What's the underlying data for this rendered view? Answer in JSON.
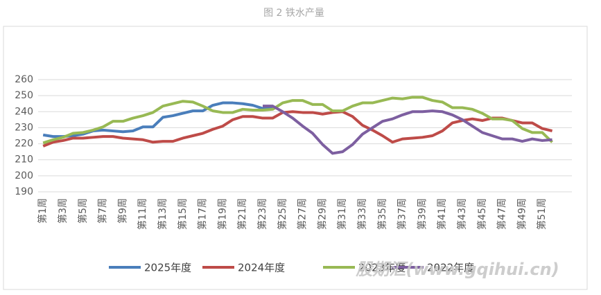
{
  "chart_data": {
    "type": "line",
    "title": "图 2 铁水产量",
    "categories": [
      "第1周",
      null,
      "第3周",
      null,
      "第5周",
      null,
      "第7周",
      null,
      "第9周",
      null,
      "第11周",
      null,
      "第13周",
      null,
      "第15周",
      null,
      "第17周",
      null,
      "第19周",
      null,
      "第21周",
      null,
      "第23周",
      null,
      "第25周",
      null,
      "第27周",
      null,
      "第29周",
      null,
      "第31周",
      null,
      "第33周",
      null,
      "第35周",
      null,
      "第37周",
      null,
      "第39周",
      null,
      "第41周",
      null,
      "第43周",
      null,
      "第45周",
      null,
      "第47周",
      null,
      "第49周",
      null,
      "第51周",
      null
    ],
    "series": [
      {
        "name": "2025年度",
        "color": "#4a7ebb",
        "values": [
          225.5,
          224.5,
          224.5,
          225,
          226,
          228,
          228.5,
          228,
          227.5,
          228,
          230.5,
          230.5,
          236.5,
          237.5,
          239,
          240.5,
          240.5,
          244,
          245.5,
          245.5,
          245,
          244,
          242,
          242,
          null,
          null,
          null,
          null,
          null,
          null,
          null,
          null,
          null,
          null,
          null,
          null,
          null,
          null,
          null,
          null,
          null,
          null,
          null,
          null,
          null,
          null,
          null,
          null,
          null,
          null,
          null,
          null
        ]
      },
      {
        "name": "2024年度",
        "color": "#be4b48",
        "values": [
          218.5,
          221,
          222,
          223.5,
          223.5,
          224,
          224.5,
          224.5,
          223.5,
          223,
          222.5,
          221,
          221.5,
          221.5,
          223.5,
          225,
          226.5,
          229,
          231,
          235,
          237,
          237,
          236,
          236,
          239.5,
          240,
          239.5,
          239.5,
          238.5,
          239.5,
          240,
          237,
          231.5,
          228.5,
          225,
          221,
          223,
          223.5,
          224,
          225,
          228,
          233,
          234.5,
          235.5,
          234.5,
          236,
          236,
          234.5,
          233,
          233,
          229.5,
          228
        ]
      },
      {
        "name": "2023年度",
        "color": "#98b954",
        "values": [
          220.5,
          222.5,
          224,
          226.5,
          227,
          228.5,
          230.5,
          234,
          234,
          236,
          237.5,
          239.5,
          243.5,
          245,
          246.5,
          246,
          243.5,
          240.5,
          239.5,
          239.5,
          241.5,
          241,
          241,
          241.5,
          245.5,
          247,
          247,
          244.5,
          244.5,
          240.5,
          240.5,
          243.5,
          245.5,
          245.5,
          247,
          248.5,
          248,
          249,
          249,
          247,
          246,
          242.5,
          242.5,
          241.5,
          239,
          235.5,
          235.5,
          234.5,
          229.5,
          227,
          227,
          221
        ]
      },
      {
        "name": "2022年度",
        "color": "#7d5fa0",
        "values": [
          null,
          null,
          null,
          null,
          null,
          null,
          null,
          null,
          null,
          null,
          null,
          null,
          null,
          null,
          null,
          null,
          null,
          null,
          null,
          null,
          null,
          null,
          243.5,
          243.5,
          240,
          236,
          231,
          226.5,
          219.5,
          214,
          215,
          219.5,
          226,
          230,
          234,
          235.5,
          238,
          240,
          240,
          240.5,
          240,
          238,
          235,
          231,
          227,
          225,
          223,
          223,
          221.5,
          223,
          222,
          222.5
        ]
      }
    ],
    "ylim": [
      190,
      260
    ],
    "yticks": [
      190,
      200,
      210,
      220,
      230,
      240,
      250,
      260
    ],
    "grid": true,
    "legend": "bottom",
    "watermark": "股期汇(www.gqihui.cn)"
  }
}
